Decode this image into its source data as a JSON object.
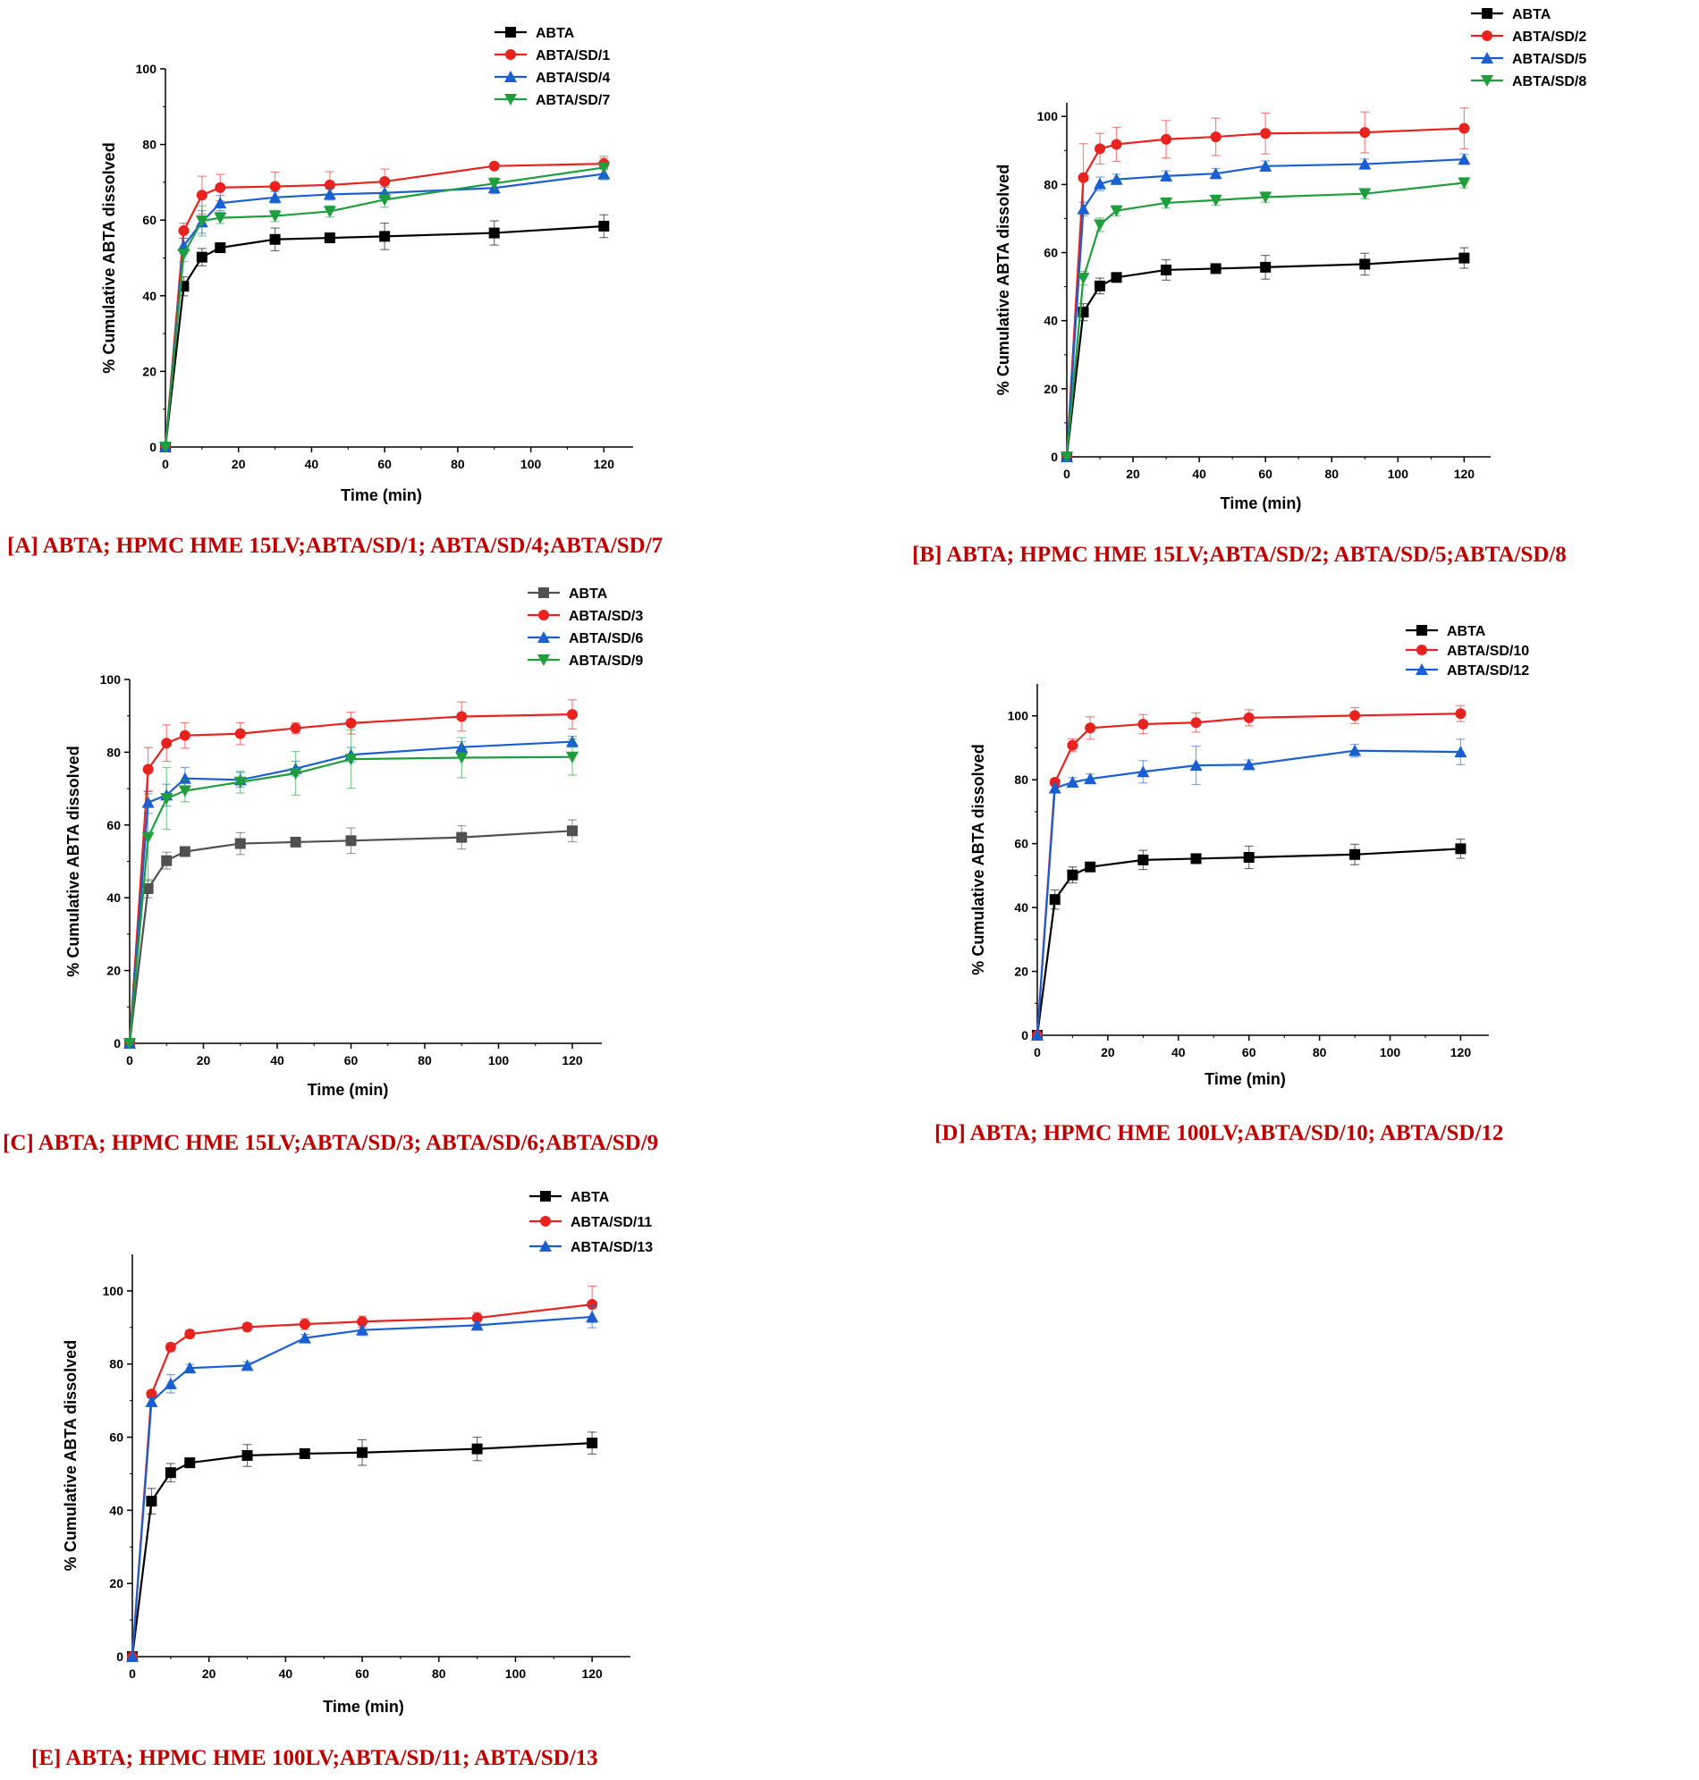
{
  "chart_data": [
    {
      "panel_id": "A",
      "type": "line",
      "caption": "[A] ABTA; HPMC HME 15LV;ABTA/SD/1; ABTA/SD/4;ABTA/SD/7",
      "xlabel": "Time (min)",
      "ylabel": "% Cumulative ABTA dissolved",
      "xlim": [
        0,
        128
      ],
      "ylim": [
        0,
        100
      ],
      "xticks": [
        0,
        20,
        40,
        60,
        80,
        100,
        120
      ],
      "yticks": [
        0,
        20,
        40,
        60,
        80,
        100
      ],
      "x": [
        0,
        5,
        10,
        15,
        30,
        45,
        60,
        90,
        120
      ],
      "legend_position": "top-right",
      "series": [
        {
          "name": "ABTA",
          "color": "#000000",
          "marker": "square",
          "values": [
            0,
            42.5,
            50.2,
            52.7,
            54.9,
            55.3,
            55.7,
            56.6,
            58.4
          ],
          "errors": [
            0,
            2.5,
            2.3,
            1.0,
            3.0,
            0.8,
            3.5,
            3.2,
            3.0
          ]
        },
        {
          "name": "ABTA/SD/1",
          "color": "#e8231f",
          "marker": "circle",
          "values": [
            0,
            57.2,
            66.6,
            68.6,
            68.9,
            69.3,
            70.2,
            74.3,
            74.9
          ],
          "errors": [
            0,
            2.0,
            5.0,
            3.5,
            3.8,
            3.5,
            3.3,
            0.8,
            1.5
          ]
        },
        {
          "name": "ABTA/SD/4",
          "color": "#1a5fd1",
          "marker": "triangle-up",
          "values": [
            0,
            53.2,
            59.5,
            64.5,
            66.0,
            66.8,
            67.2,
            68.5,
            72.2
          ],
          "errors": [
            0,
            2.0,
            3.0,
            2.0,
            1.5,
            1.5,
            1.5,
            1.5,
            1.5
          ]
        },
        {
          "name": "ABTA/SD/7",
          "color": "#1e9e3c",
          "marker": "triangle-down",
          "values": [
            0,
            51.0,
            59.8,
            60.6,
            61.1,
            62.3,
            65.4,
            69.7,
            73.9
          ],
          "errors": [
            0,
            2.0,
            4.0,
            1.5,
            1.5,
            1.5,
            2.0,
            1.5,
            3.0
          ]
        }
      ]
    },
    {
      "panel_id": "B",
      "type": "line",
      "caption": "[B] ABTA; HPMC HME 15LV;ABTA/SD/2; ABTA/SD/5;ABTA/SD/8",
      "xlabel": "Time (min)",
      "ylabel": "% Cumulative ABTA dissolved",
      "xlim": [
        0,
        128
      ],
      "ylim": [
        0,
        104
      ],
      "xticks": [
        0,
        20,
        40,
        60,
        80,
        100,
        120
      ],
      "yticks": [
        0,
        20,
        40,
        60,
        80,
        100
      ],
      "x": [
        0,
        5,
        10,
        15,
        30,
        45,
        60,
        90,
        120
      ],
      "legend_position": "top-right",
      "series": [
        {
          "name": "ABTA",
          "color": "#000000",
          "marker": "square",
          "values": [
            0,
            42.5,
            50.2,
            52.7,
            54.9,
            55.3,
            55.7,
            56.6,
            58.4
          ],
          "errors": [
            0,
            2.5,
            2.3,
            1.0,
            3.0,
            0.8,
            3.5,
            3.2,
            3.0
          ]
        },
        {
          "name": "ABTA/SD/2",
          "color": "#e8231f",
          "marker": "circle",
          "values": [
            0,
            82.0,
            90.5,
            91.8,
            93.3,
            94.0,
            95.0,
            95.3,
            96.5
          ],
          "errors": [
            0,
            10.0,
            4.5,
            5.0,
            5.5,
            5.5,
            6.0,
            6.0,
            6.0
          ]
        },
        {
          "name": "ABTA/SD/5",
          "color": "#1a5fd1",
          "marker": "triangle-up",
          "values": [
            0,
            72.8,
            80.2,
            81.5,
            82.5,
            83.2,
            85.4,
            86.0,
            87.4
          ],
          "errors": [
            0,
            2.0,
            2.0,
            1.5,
            1.5,
            1.5,
            1.5,
            1.5,
            1.5
          ]
        },
        {
          "name": "ABTA/SD/8",
          "color": "#1e9e3c",
          "marker": "triangle-down",
          "values": [
            0,
            52.5,
            68.2,
            72.3,
            74.6,
            75.4,
            76.3,
            77.3,
            80.5
          ],
          "errors": [
            0,
            2.0,
            2.0,
            1.5,
            1.5,
            1.5,
            1.5,
            1.5,
            1.5
          ]
        }
      ]
    },
    {
      "panel_id": "C",
      "type": "line",
      "caption": "[C] ABTA; HPMC HME 15LV;ABTA/SD/3; ABTA/SD/6;ABTA/SD/9",
      "xlabel": "Time (min)",
      "ylabel": "% Cumulative ABTA dissolved",
      "xlim": [
        0,
        128
      ],
      "ylim": [
        0,
        100
      ],
      "xticks": [
        0,
        20,
        40,
        60,
        80,
        100,
        120
      ],
      "yticks": [
        0,
        20,
        40,
        60,
        80,
        100
      ],
      "x": [
        0,
        5,
        10,
        15,
        30,
        45,
        60,
        90,
        120
      ],
      "legend_position": "top-right",
      "series": [
        {
          "name": "ABTA",
          "color": "#505050",
          "marker": "square",
          "values": [
            0,
            42.5,
            50.2,
            52.7,
            54.9,
            55.3,
            55.7,
            56.6,
            58.4
          ],
          "errors": [
            0,
            2.5,
            2.3,
            1.0,
            3.0,
            0.8,
            3.5,
            3.2,
            3.0
          ]
        },
        {
          "name": "ABTA/SD/3",
          "color": "#e8231f",
          "marker": "circle",
          "values": [
            0,
            75.3,
            82.5,
            84.6,
            85.1,
            86.6,
            88.0,
            89.8,
            90.4
          ],
          "errors": [
            0,
            6.0,
            5.0,
            3.5,
            3.0,
            1.5,
            3.0,
            4.0,
            4.0
          ]
        },
        {
          "name": "ABTA/SD/6",
          "color": "#1a5fd1",
          "marker": "triangle-up",
          "values": [
            0,
            66.2,
            68.2,
            72.8,
            72.4,
            75.5,
            79.3,
            81.4,
            82.9
          ],
          "errors": [
            0,
            3.0,
            3.0,
            3.0,
            2.0,
            2.0,
            2.0,
            1.5,
            1.5
          ]
        },
        {
          "name": "ABTA/SD/9",
          "color": "#1e9e3c",
          "marker": "triangle-down",
          "values": [
            0,
            56.6,
            67.3,
            69.4,
            71.8,
            74.2,
            78.1,
            78.5,
            78.7
          ],
          "errors": [
            0,
            12.0,
            8.5,
            3.0,
            3.0,
            6.0,
            8.0,
            5.5,
            5.0
          ]
        }
      ]
    },
    {
      "panel_id": "D",
      "type": "line",
      "caption": "[D] ABTA; HPMC HME 100LV;ABTA/SD/10; ABTA/SD/12",
      "xlabel": "Time (min)",
      "ylabel": "% Cumulative ABTA dissolved",
      "xlim": [
        0,
        128
      ],
      "ylim": [
        0,
        110
      ],
      "xticks": [
        0,
        20,
        40,
        60,
        80,
        100,
        120
      ],
      "yticks": [
        0,
        20,
        40,
        60,
        80,
        100
      ],
      "x": [
        0,
        5,
        10,
        15,
        30,
        45,
        60,
        90,
        120
      ],
      "legend_position": "top-right",
      "series": [
        {
          "name": "ABTA",
          "color": "#000000",
          "marker": "square",
          "values": [
            0,
            42.5,
            50.2,
            52.7,
            54.9,
            55.3,
            55.7,
            56.6,
            58.4
          ],
          "errors": [
            0,
            3.0,
            2.5,
            1.0,
            3.0,
            0.8,
            3.5,
            3.2,
            3.0
          ]
        },
        {
          "name": "ABTA/SD/10",
          "color": "#e8231f",
          "marker": "circle",
          "values": [
            0,
            79.2,
            90.8,
            96.2,
            97.4,
            97.9,
            99.4,
            100.1,
            100.7
          ],
          "errors": [
            0,
            1.0,
            2.0,
            3.5,
            3.0,
            3.0,
            2.5,
            2.5,
            2.5
          ]
        },
        {
          "name": "ABTA/SD/12",
          "color": "#1a5fd1",
          "marker": "triangle-up",
          "values": [
            0,
            77.4,
            79.2,
            80.3,
            82.5,
            84.5,
            84.7,
            89.1,
            88.7
          ],
          "errors": [
            0,
            1.5,
            1.5,
            1.5,
            3.5,
            6.0,
            1.5,
            2.0,
            4.0
          ]
        }
      ]
    },
    {
      "panel_id": "E",
      "type": "line",
      "caption": "[E] ABTA; HPMC HME 100LV;ABTA/SD/11; ABTA/SD/13",
      "xlabel": "Time (min)",
      "ylabel": "% Cumulative ABTA dissolved",
      "xlim": [
        0,
        130
      ],
      "ylim": [
        0,
        110
      ],
      "xticks": [
        0,
        20,
        40,
        60,
        80,
        100,
        120
      ],
      "yticks": [
        0,
        20,
        40,
        60,
        80,
        100
      ],
      "x": [
        0,
        5,
        10,
        15,
        30,
        45,
        60,
        90,
        120
      ],
      "legend_position": "top-right",
      "series": [
        {
          "name": "ABTA",
          "color": "#000000",
          "marker": "square",
          "values": [
            0,
            42.5,
            50.3,
            53.0,
            55.0,
            55.5,
            55.8,
            56.8,
            58.4
          ],
          "errors": [
            0,
            3.5,
            2.5,
            1.0,
            3.0,
            0.8,
            3.5,
            3.2,
            3.0
          ]
        },
        {
          "name": "ABTA/SD/11",
          "color": "#e8231f",
          "marker": "circle",
          "values": [
            0,
            71.8,
            84.6,
            88.2,
            90.1,
            90.9,
            91.6,
            92.6,
            96.3
          ],
          "errors": [
            0,
            1.0,
            1.0,
            1.0,
            1.0,
            1.5,
            1.5,
            1.5,
            5.0
          ]
        },
        {
          "name": "ABTA/SD/13",
          "color": "#1a5fd1",
          "marker": "triangle-up",
          "values": [
            0,
            69.7,
            74.6,
            78.9,
            79.6,
            87.1,
            89.3,
            90.6,
            92.9
          ],
          "errors": [
            0,
            1.0,
            2.5,
            1.0,
            1.0,
            1.0,
            1.5,
            1.0,
            3.0
          ]
        }
      ]
    }
  ]
}
